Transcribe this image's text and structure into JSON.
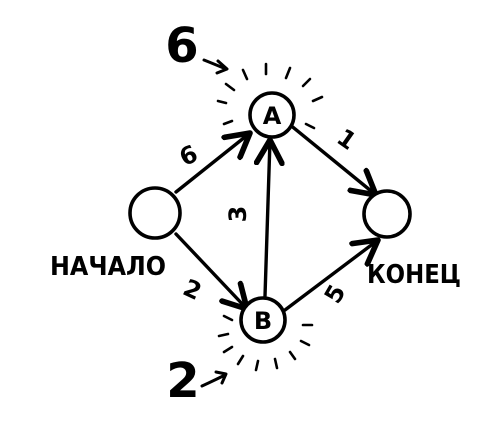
{
  "graph": {
    "nodes": [
      {
        "id": "start",
        "label": "НАЧАЛО"
      },
      {
        "id": "a",
        "label": "A"
      },
      {
        "id": "b",
        "label": "B"
      },
      {
        "id": "end",
        "label": "КОНЕЦ"
      }
    ],
    "edges": [
      {
        "from": "start",
        "to": "a",
        "weight": "6"
      },
      {
        "from": "start",
        "to": "b",
        "weight": "2"
      },
      {
        "from": "b",
        "to": "a",
        "weight": "3"
      },
      {
        "from": "a",
        "to": "end",
        "weight": "1"
      },
      {
        "from": "b",
        "to": "end",
        "weight": "5"
      }
    ],
    "annotations": {
      "a_cost": "6",
      "b_cost": "2"
    }
  }
}
